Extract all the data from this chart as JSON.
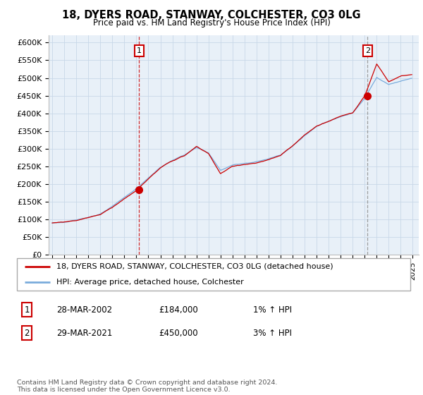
{
  "title": "18, DYERS ROAD, STANWAY, COLCHESTER, CO3 0LG",
  "subtitle": "Price paid vs. HM Land Registry's House Price Index (HPI)",
  "ylim": [
    0,
    620000
  ],
  "yticks": [
    0,
    50000,
    100000,
    150000,
    200000,
    250000,
    300000,
    350000,
    400000,
    450000,
    500000,
    550000,
    600000
  ],
  "ytick_labels": [
    "£0",
    "£50K",
    "£100K",
    "£150K",
    "£200K",
    "£250K",
    "£300K",
    "£350K",
    "£400K",
    "£450K",
    "£500K",
    "£550K",
    "£600K"
  ],
  "xlim_start": 1994.7,
  "xlim_end": 2025.5,
  "marker1_x": 2002.23,
  "marker1_y": 184000,
  "marker1_label": "1",
  "marker2_x": 2021.24,
  "marker2_y": 450000,
  "marker2_label": "2",
  "line_color_property": "#cc0000",
  "line_color_hpi": "#7aacdc",
  "plot_bg_color": "#e8f0f8",
  "legend_property": "18, DYERS ROAD, STANWAY, COLCHESTER, CO3 0LG (detached house)",
  "legend_hpi": "HPI: Average price, detached house, Colchester",
  "note1_label": "1",
  "note1_date": "28-MAR-2002",
  "note1_price": "£184,000",
  "note1_hpi": "1% ↑ HPI",
  "note2_label": "2",
  "note2_date": "29-MAR-2021",
  "note2_price": "£450,000",
  "note2_hpi": "3% ↑ HPI",
  "footer": "Contains HM Land Registry data © Crown copyright and database right 2024.\nThis data is licensed under the Open Government Licence v3.0.",
  "background_color": "#ffffff",
  "grid_color": "#c8d8e8"
}
